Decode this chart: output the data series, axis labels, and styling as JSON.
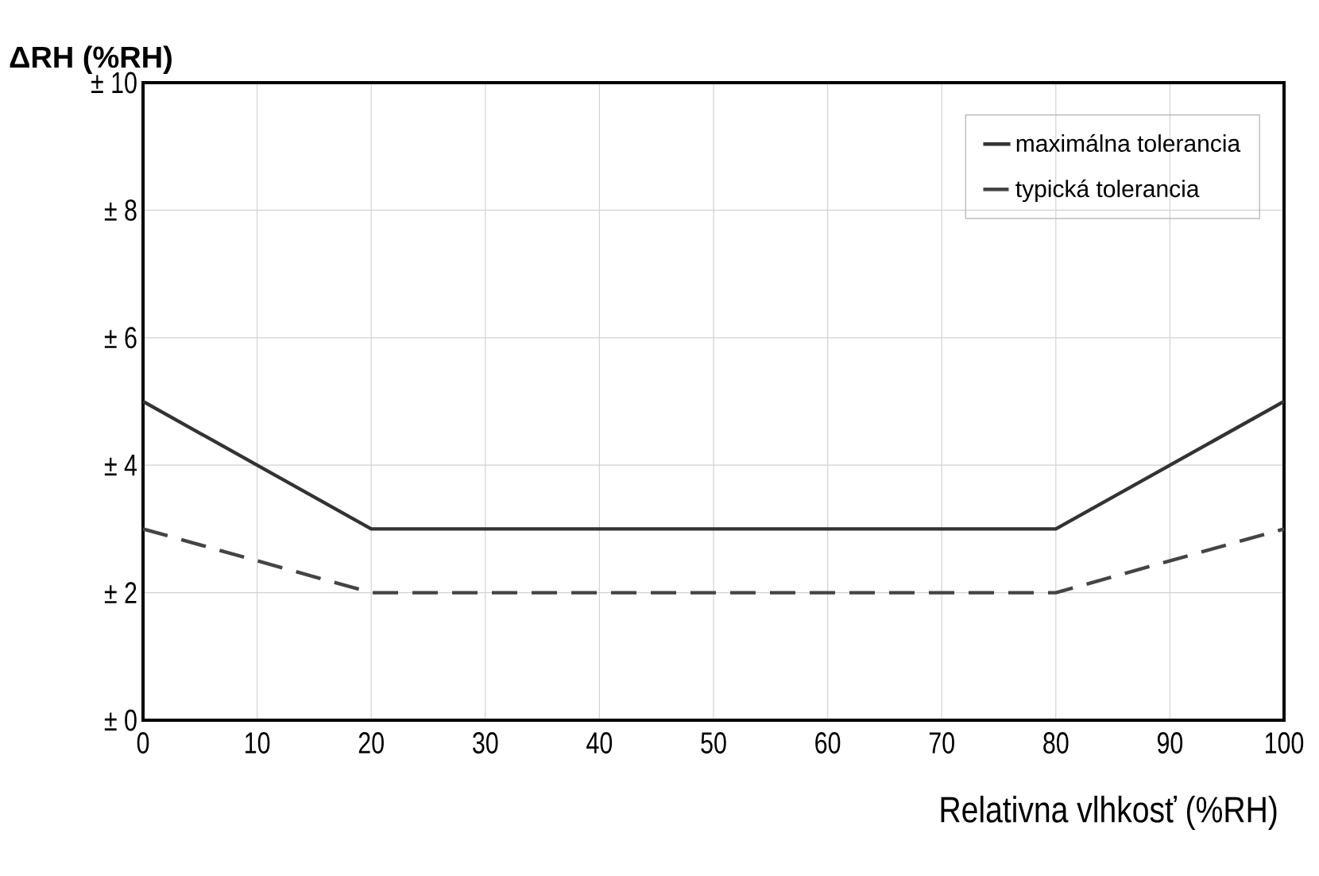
{
  "chart_data": {
    "type": "line",
    "ylabel": "**Δ**RH (%RH)",
    "xlabel": "Relativna vlhkosť (%RH)",
    "x": [
      0,
      20,
      80,
      100
    ],
    "series": [
      {
        "name": "maximálna tolerancia",
        "color": "#333333",
        "line_style": "solid",
        "values": [
          5,
          3,
          3,
          5
        ]
      },
      {
        "name": "typická tolerancia",
        "color": "#444444",
        "line_style": "dashed",
        "values": [
          3,
          2,
          2,
          3
        ]
      }
    ],
    "xlim": [
      0,
      100
    ],
    "xticks": [
      0,
      10,
      20,
      30,
      40,
      50,
      60,
      70,
      80,
      90,
      100
    ],
    "ylim": [
      0,
      10
    ],
    "yticks": [
      {
        "value": 0,
        "label": "± 0"
      },
      {
        "value": 2,
        "label": "± 2"
      },
      {
        "value": 4,
        "label": "± 4"
      },
      {
        "value": 6,
        "label": "± 6"
      },
      {
        "value": 8,
        "label": "± 8"
      },
      {
        "value": 10,
        "label": "± 10"
      }
    ],
    "grid": true,
    "legend": "top right",
    "marker": "none"
  }
}
